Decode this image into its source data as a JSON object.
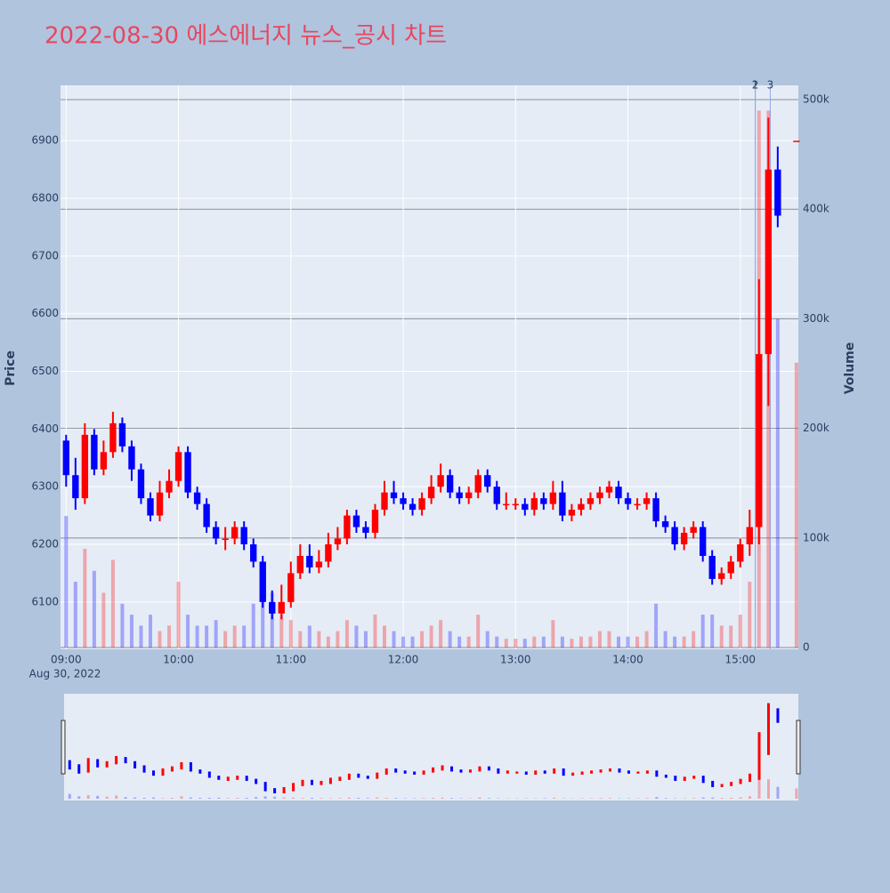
{
  "chart_data": {
    "type": "candlestick",
    "title": "2022-08-30 에스에너지 뉴스_공시 차트",
    "y_title": "Price",
    "y2_title": "Volume",
    "x_date_label": "Aug 30, 2022",
    "increasing_color": "#ff0000",
    "decreasing_color": "#0000ff",
    "x": [
      "2022-08-30 09:00",
      "2022-08-30 09:05",
      "2022-08-30 09:10",
      "2022-08-30 09:15",
      "2022-08-30 09:20",
      "2022-08-30 09:25",
      "2022-08-30 09:30",
      "2022-08-30 09:35",
      "2022-08-30 09:40",
      "2022-08-30 09:45",
      "2022-08-30 09:50",
      "2022-08-30 09:55",
      "2022-08-30 10:00",
      "2022-08-30 10:05",
      "2022-08-30 10:10",
      "2022-08-30 10:15",
      "2022-08-30 10:20",
      "2022-08-30 10:25",
      "2022-08-30 10:30",
      "2022-08-30 10:35",
      "2022-08-30 10:40",
      "2022-08-30 10:45",
      "2022-08-30 10:50",
      "2022-08-30 10:55",
      "2022-08-30 11:00",
      "2022-08-30 11:05",
      "2022-08-30 11:10",
      "2022-08-30 11:15",
      "2022-08-30 11:20",
      "2022-08-30 11:25",
      "2022-08-30 11:30",
      "2022-08-30 11:35",
      "2022-08-30 11:40",
      "2022-08-30 11:45",
      "2022-08-30 11:50",
      "2022-08-30 11:55",
      "2022-08-30 12:00",
      "2022-08-30 12:05",
      "2022-08-30 12:10",
      "2022-08-30 12:15",
      "2022-08-30 12:20",
      "2022-08-30 12:25",
      "2022-08-30 12:30",
      "2022-08-30 12:35",
      "2022-08-30 12:40",
      "2022-08-30 12:45",
      "2022-08-30 12:50",
      "2022-08-30 12:55",
      "2022-08-30 13:00",
      "2022-08-30 13:05",
      "2022-08-30 13:10",
      "2022-08-30 13:15",
      "2022-08-30 13:20",
      "2022-08-30 13:25",
      "2022-08-30 13:30",
      "2022-08-30 13:35",
      "2022-08-30 13:40",
      "2022-08-30 13:45",
      "2022-08-30 13:50",
      "2022-08-30 13:55",
      "2022-08-30 14:00",
      "2022-08-30 14:05",
      "2022-08-30 14:10",
      "2022-08-30 14:15",
      "2022-08-30 14:20",
      "2022-08-30 14:25",
      "2022-08-30 14:30",
      "2022-08-30 14:35",
      "2022-08-30 14:40",
      "2022-08-30 14:45",
      "2022-08-30 14:50",
      "2022-08-30 14:55",
      "2022-08-30 15:00",
      "2022-08-30 15:05",
      "2022-08-30 15:10",
      "2022-08-30 15:15",
      "2022-08-30 15:20",
      "2022-08-30 15:30"
    ],
    "open": [
      6380,
      6320,
      6280,
      6390,
      6330,
      6360,
      6410,
      6370,
      6330,
      6280,
      6250,
      6290,
      6310,
      6360,
      6290,
      6270,
      6230,
      6210,
      6210,
      6230,
      6200,
      6170,
      6100,
      6080,
      6100,
      6150,
      6180,
      6160,
      6170,
      6200,
      6210,
      6250,
      6230,
      6220,
      6260,
      6290,
      6280,
      6270,
      6260,
      6280,
      6300,
      6320,
      6290,
      6280,
      6290,
      6320,
      6300,
      6270,
      6270,
      6270,
      6260,
      6280,
      6270,
      6290,
      6250,
      6260,
      6270,
      6280,
      6290,
      6300,
      6280,
      6270,
      6270,
      6280,
      6240,
      6230,
      6200,
      6220,
      6230,
      6180,
      6140,
      6150,
      6170,
      6200,
      6230,
      6530,
      6850,
      6900
    ],
    "high": [
      6390,
      6350,
      6410,
      6400,
      6380,
      6430,
      6420,
      6380,
      6340,
      6290,
      6310,
      6330,
      6370,
      6370,
      6300,
      6280,
      6240,
      6230,
      6240,
      6240,
      6210,
      6180,
      6120,
      6130,
      6170,
      6200,
      6200,
      6190,
      6220,
      6230,
      6260,
      6260,
      6240,
      6270,
      6310,
      6310,
      6290,
      6280,
      6290,
      6320,
      6340,
      6330,
      6300,
      6300,
      6330,
      6330,
      6310,
      6290,
      6280,
      6280,
      6290,
      6290,
      6310,
      6310,
      6270,
      6280,
      6290,
      6300,
      6310,
      6310,
      6290,
      6280,
      6290,
      6290,
      6250,
      6240,
      6230,
      6240,
      6240,
      6190,
      6160,
      6180,
      6210,
      6260,
      6660,
      6940,
      6890,
      6900
    ],
    "low": [
      6300,
      6260,
      6270,
      6320,
      6320,
      6350,
      6360,
      6310,
      6270,
      6240,
      6240,
      6280,
      6300,
      6280,
      6260,
      6220,
      6200,
      6190,
      6200,
      6190,
      6160,
      6090,
      6070,
      6070,
      6090,
      6140,
      6150,
      6150,
      6160,
      6190,
      6200,
      6220,
      6210,
      6210,
      6250,
      6270,
      6260,
      6250,
      6250,
      6270,
      6290,
      6280,
      6270,
      6270,
      6280,
      6290,
      6260,
      6260,
      6260,
      6250,
      6250,
      6260,
      6260,
      6240,
      6240,
      6250,
      6260,
      6270,
      6280,
      6270,
      6260,
      6260,
      6260,
      6230,
      6220,
      6190,
      6190,
      6210,
      6170,
      6130,
      6130,
      6140,
      6160,
      6180,
      6200,
      6440,
      6750,
      6900
    ],
    "close": [
      6320,
      6280,
      6390,
      6330,
      6360,
      6410,
      6370,
      6330,
      6280,
      6250,
      6290,
      6310,
      6360,
      6290,
      6270,
      6230,
      6210,
      6210,
      6230,
      6200,
      6170,
      6100,
      6080,
      6100,
      6150,
      6180,
      6160,
      6170,
      6200,
      6210,
      6250,
      6230,
      6220,
      6260,
      6290,
      6280,
      6270,
      6260,
      6280,
      6300,
      6320,
      6290,
      6280,
      6290,
      6320,
      6300,
      6270,
      6270,
      6270,
      6260,
      6280,
      6270,
      6290,
      6250,
      6260,
      6270,
      6280,
      6290,
      6300,
      6280,
      6270,
      6270,
      6280,
      6240,
      6230,
      6200,
      6220,
      6230,
      6180,
      6140,
      6150,
      6170,
      6200,
      6230,
      6530,
      6850,
      6770,
      6900
    ],
    "volume": [
      120000,
      60000,
      90000,
      70000,
      50000,
      80000,
      40000,
      30000,
      20000,
      30000,
      15000,
      20000,
      60000,
      30000,
      20000,
      20000,
      25000,
      15000,
      20000,
      20000,
      40000,
      60000,
      50000,
      30000,
      25000,
      15000,
      20000,
      15000,
      10000,
      15000,
      25000,
      20000,
      15000,
      30000,
      20000,
      15000,
      10000,
      10000,
      15000,
      20000,
      25000,
      15000,
      10000,
      10000,
      30000,
      15000,
      10000,
      8000,
      8000,
      8000,
      10000,
      10000,
      25000,
      10000,
      8000,
      10000,
      10000,
      15000,
      15000,
      10000,
      10000,
      10000,
      15000,
      40000,
      15000,
      10000,
      10000,
      15000,
      30000,
      30000,
      20000,
      20000,
      30000,
      60000,
      490000,
      490000,
      300000,
      260000
    ],
    "annotations": [
      {
        "x": "2022-08-30 15:08",
        "text": "1"
      },
      {
        "x": "2022-08-30 15:08",
        "text": "2"
      },
      {
        "x": "2022-08-30 15:16",
        "text": "3"
      }
    ],
    "xlim": [
      "2022-08-30 08:57",
      "2022-08-30 15:31"
    ],
    "xticks": [
      {
        "value": "2022-08-30 09:00",
        "label": "09:00"
      },
      {
        "value": "2022-08-30 10:00",
        "label": "10:00"
      },
      {
        "value": "2022-08-30 11:00",
        "label": "11:00"
      },
      {
        "value": "2022-08-30 12:00",
        "label": "12:00"
      },
      {
        "value": "2022-08-30 13:00",
        "label": "13:00"
      },
      {
        "value": "2022-08-30 14:00",
        "label": "14:00"
      },
      {
        "value": "2022-08-30 15:00",
        "label": "15:00"
      }
    ],
    "ylim": [
      6018,
      6996
    ],
    "yticks": [
      6100,
      6200,
      6300,
      6400,
      6500,
      6600,
      6700,
      6800,
      6900
    ],
    "y2lim": [
      -1600,
      513000
    ],
    "y2ticks": [
      0,
      {
        "value": 100000,
        "label": "100k"
      },
      {
        "value": 200000,
        "label": "200k"
      },
      {
        "value": 300000,
        "label": "300k"
      },
      {
        "value": 400000,
        "label": "400k"
      },
      {
        "value": 500000,
        "label": "500k"
      }
    ],
    "grid": true,
    "rangeslider": true
  }
}
